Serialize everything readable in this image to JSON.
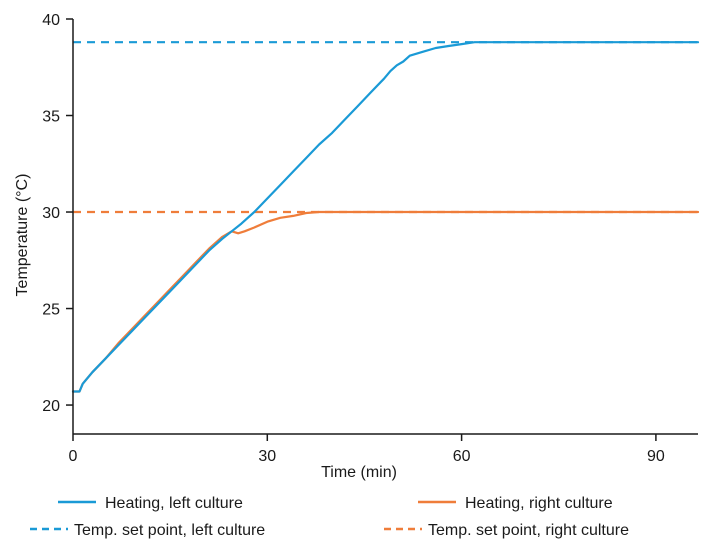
{
  "chart_data": {
    "type": "line",
    "title": "",
    "xlabel": "Time (min)",
    "ylabel": "Temperature (°C)",
    "xlim": [
      0,
      96.5
    ],
    "ylim": [
      18.5,
      40
    ],
    "xticks": [
      0,
      30,
      60,
      90
    ],
    "yticks": [
      20,
      25,
      30,
      35,
      40
    ],
    "grid": false,
    "legend_position": "bottom",
    "series": [
      {
        "name": "Heating, left culture",
        "color": "#1a9ad6",
        "style": "solid",
        "x": [
          0,
          1,
          1.5,
          3,
          5,
          7,
          9,
          11,
          13,
          15,
          17,
          19,
          21,
          23,
          24.5,
          26,
          28,
          30,
          32,
          34,
          36,
          38,
          40,
          42,
          44,
          46,
          48,
          49,
          50,
          51,
          52,
          54,
          56,
          58,
          60,
          62,
          65,
          70,
          80,
          90,
          96.5
        ],
        "y": [
          20.7,
          20.7,
          21.1,
          21.7,
          22.4,
          23.1,
          23.8,
          24.5,
          25.2,
          25.9,
          26.6,
          27.3,
          28.0,
          28.6,
          29.0,
          29.4,
          30.0,
          30.7,
          31.4,
          32.1,
          32.8,
          33.5,
          34.1,
          34.8,
          35.5,
          36.2,
          36.9,
          37.3,
          37.6,
          37.8,
          38.1,
          38.3,
          38.5,
          38.6,
          38.7,
          38.8,
          38.8,
          38.8,
          38.8,
          38.8,
          38.8
        ]
      },
      {
        "name": "Heating, right culture",
        "color": "#ef7d3a",
        "style": "solid",
        "x": [
          0,
          1,
          1.5,
          3,
          5,
          7,
          9,
          11,
          13,
          15,
          17,
          19,
          21,
          23,
          24.5,
          25.5,
          26.5,
          28,
          30,
          32,
          34,
          36,
          38,
          40,
          45,
          50,
          60,
          70,
          80,
          90,
          96.5
        ],
        "y": [
          20.7,
          20.7,
          21.1,
          21.7,
          22.4,
          23.2,
          23.9,
          24.6,
          25.3,
          26.0,
          26.7,
          27.4,
          28.1,
          28.7,
          29.0,
          28.9,
          29.0,
          29.2,
          29.5,
          29.7,
          29.8,
          29.95,
          30.0,
          30.0,
          30.0,
          30.0,
          30.0,
          30.0,
          30.0,
          30.0,
          30.0
        ]
      },
      {
        "name": "Temp. set point, left culture",
        "color": "#1a9ad6",
        "style": "dashed",
        "x": [
          0,
          96.5
        ],
        "y": [
          38.8,
          38.8
        ]
      },
      {
        "name": "Temp. set point, right culture",
        "color": "#ef7d3a",
        "style": "dashed",
        "x": [
          0,
          96.5
        ],
        "y": [
          30.0,
          30.0
        ]
      }
    ]
  }
}
